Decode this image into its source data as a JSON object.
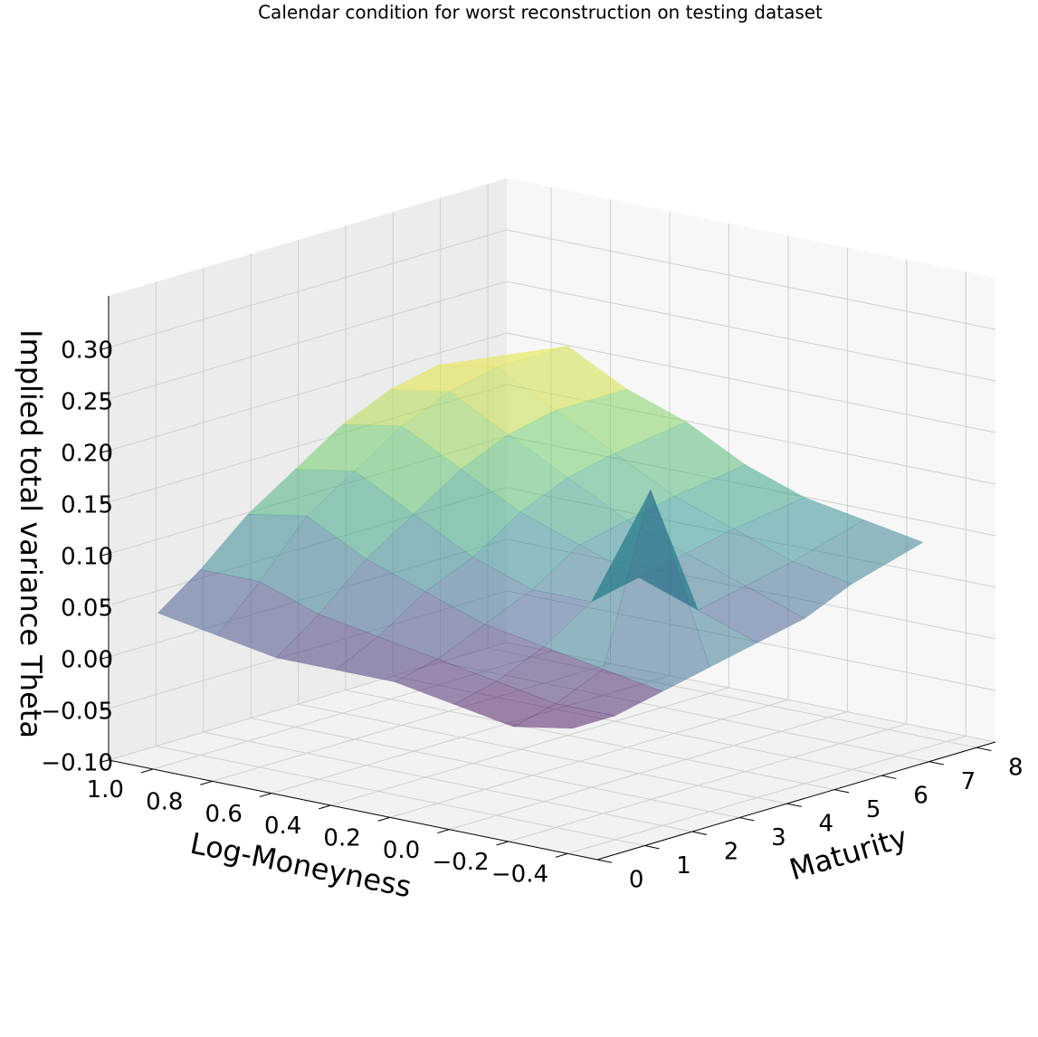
{
  "chart_data": {
    "type": "surface",
    "title": "Calendar condition for worst reconstruction on testing dataset",
    "xlabel": "Log-Moneyness",
    "ylabel": "Maturity",
    "zlabel": "Implied total variance Theta",
    "x": [
      -0.4,
      -0.2,
      0,
      0.2,
      0.4,
      0.6,
      0.8,
      1.0
    ],
    "y": [
      0.1,
      1,
      2,
      3,
      4,
      5,
      6,
      7.5
    ],
    "z": [
      [
        0.02,
        0.01,
        0.02,
        0.03,
        0.03,
        0.03,
        0.04,
        0.05
      ],
      [
        0.02,
        0.02,
        0.03,
        0.04,
        0.05,
        0.06,
        0.08,
        0.08
      ],
      [
        0.03,
        0.04,
        0.05,
        0.06,
        0.08,
        0.1,
        0.13,
        0.12
      ],
      [
        0.04,
        0.2,
        0.08,
        0.08,
        0.1,
        0.13,
        0.16,
        0.15
      ],
      [
        0.05,
        0.07,
        0.09,
        0.11,
        0.13,
        0.16,
        0.19,
        0.18
      ],
      [
        0.06,
        0.08,
        0.1,
        0.12,
        0.15,
        0.18,
        0.21,
        0.2
      ],
      [
        0.08,
        0.09,
        0.11,
        0.13,
        0.16,
        0.19,
        0.22,
        0.21
      ],
      [
        0.1,
        0.11,
        0.12,
        0.14,
        0.17,
        0.19,
        0.22,
        0.2
      ]
    ],
    "colormap": "viridis",
    "alpha": 0.5,
    "xlim": [
      -0.5,
      1.15
    ],
    "xticks": [
      {
        "value": 1.0,
        "label": "1.0"
      },
      {
        "value": 0.8,
        "label": "0.8"
      },
      {
        "value": 0.6,
        "label": "0.6"
      },
      {
        "value": 0.4,
        "label": "0.4"
      },
      {
        "value": 0.2,
        "label": "0.2"
      },
      {
        "value": 0,
        "label": "0.0"
      },
      {
        "value": -0.2,
        "label": "−0.2"
      },
      {
        "value": -0.4,
        "label": "−0.4"
      }
    ],
    "ylim": [
      0,
      8.4
    ],
    "yticks": [
      0,
      1,
      2,
      3,
      4,
      5,
      6,
      7,
      8
    ],
    "zlim": [
      -0.1,
      0.35
    ],
    "zticks": [
      {
        "value": -0.1,
        "label": "−0.10"
      },
      {
        "value": -0.05,
        "label": "−0.05"
      },
      {
        "value": 0,
        "label": "0.00"
      },
      {
        "value": 0.05,
        "label": "0.05"
      },
      {
        "value": 0.1,
        "label": "0.10"
      },
      {
        "value": 0.15,
        "label": "0.15"
      },
      {
        "value": 0.2,
        "label": "0.20"
      },
      {
        "value": 0.25,
        "label": "0.25"
      },
      {
        "value": 0.3,
        "label": "0.30"
      }
    ],
    "grid": true
  }
}
